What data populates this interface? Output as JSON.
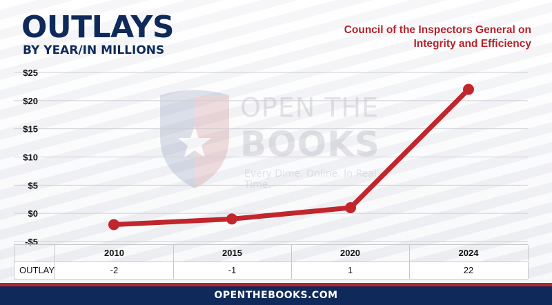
{
  "header": {
    "title": "OUTLAYS",
    "subtitle": "BY YEAR/IN MILLIONS",
    "agency_line1": "Council of the Inspectors General on",
    "agency_line2": "Integrity and Efficiency"
  },
  "watermark": {
    "line1": "OPEN THE",
    "line2": "BOOKS",
    "tagline": "Every Dime. Online. In Real Time."
  },
  "chart_data": {
    "type": "line",
    "categories": [
      "2010",
      "2015",
      "2020",
      "2024"
    ],
    "series": [
      {
        "name": "OUTLAY",
        "values": [
          -2,
          -1,
          1,
          22
        ],
        "color": "#c0262c"
      }
    ],
    "ylim": [
      -5,
      25
    ],
    "yticks": [
      -5,
      0,
      5,
      10,
      15,
      20,
      25
    ],
    "ytick_labels": [
      "-$5",
      "$0",
      "$5",
      "$10",
      "$15",
      "$20",
      "$25"
    ],
    "grid": true
  },
  "table": {
    "row_label": "OUTLAY",
    "headers": [
      "2010",
      "2015",
      "2020",
      "2024"
    ],
    "values": [
      "-2",
      "-1",
      "1",
      "22"
    ]
  },
  "footer": {
    "text": "OPENTHEBOOKS.COM"
  },
  "colors": {
    "navy": "#0f2a5a",
    "red": "#b5232a",
    "line": "#c0262c"
  }
}
